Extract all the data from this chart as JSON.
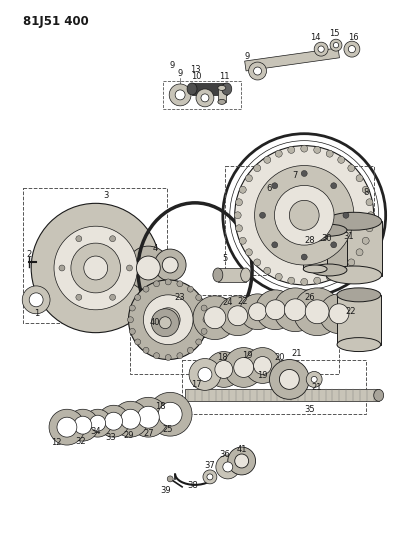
{
  "title": "81J51 400",
  "bg_color": "#ffffff",
  "line_color": "#1a1a1a",
  "fig_width": 3.94,
  "fig_height": 5.33,
  "dpi": 100,
  "title_fontsize": 8.5,
  "label_fontsize": 6.0
}
